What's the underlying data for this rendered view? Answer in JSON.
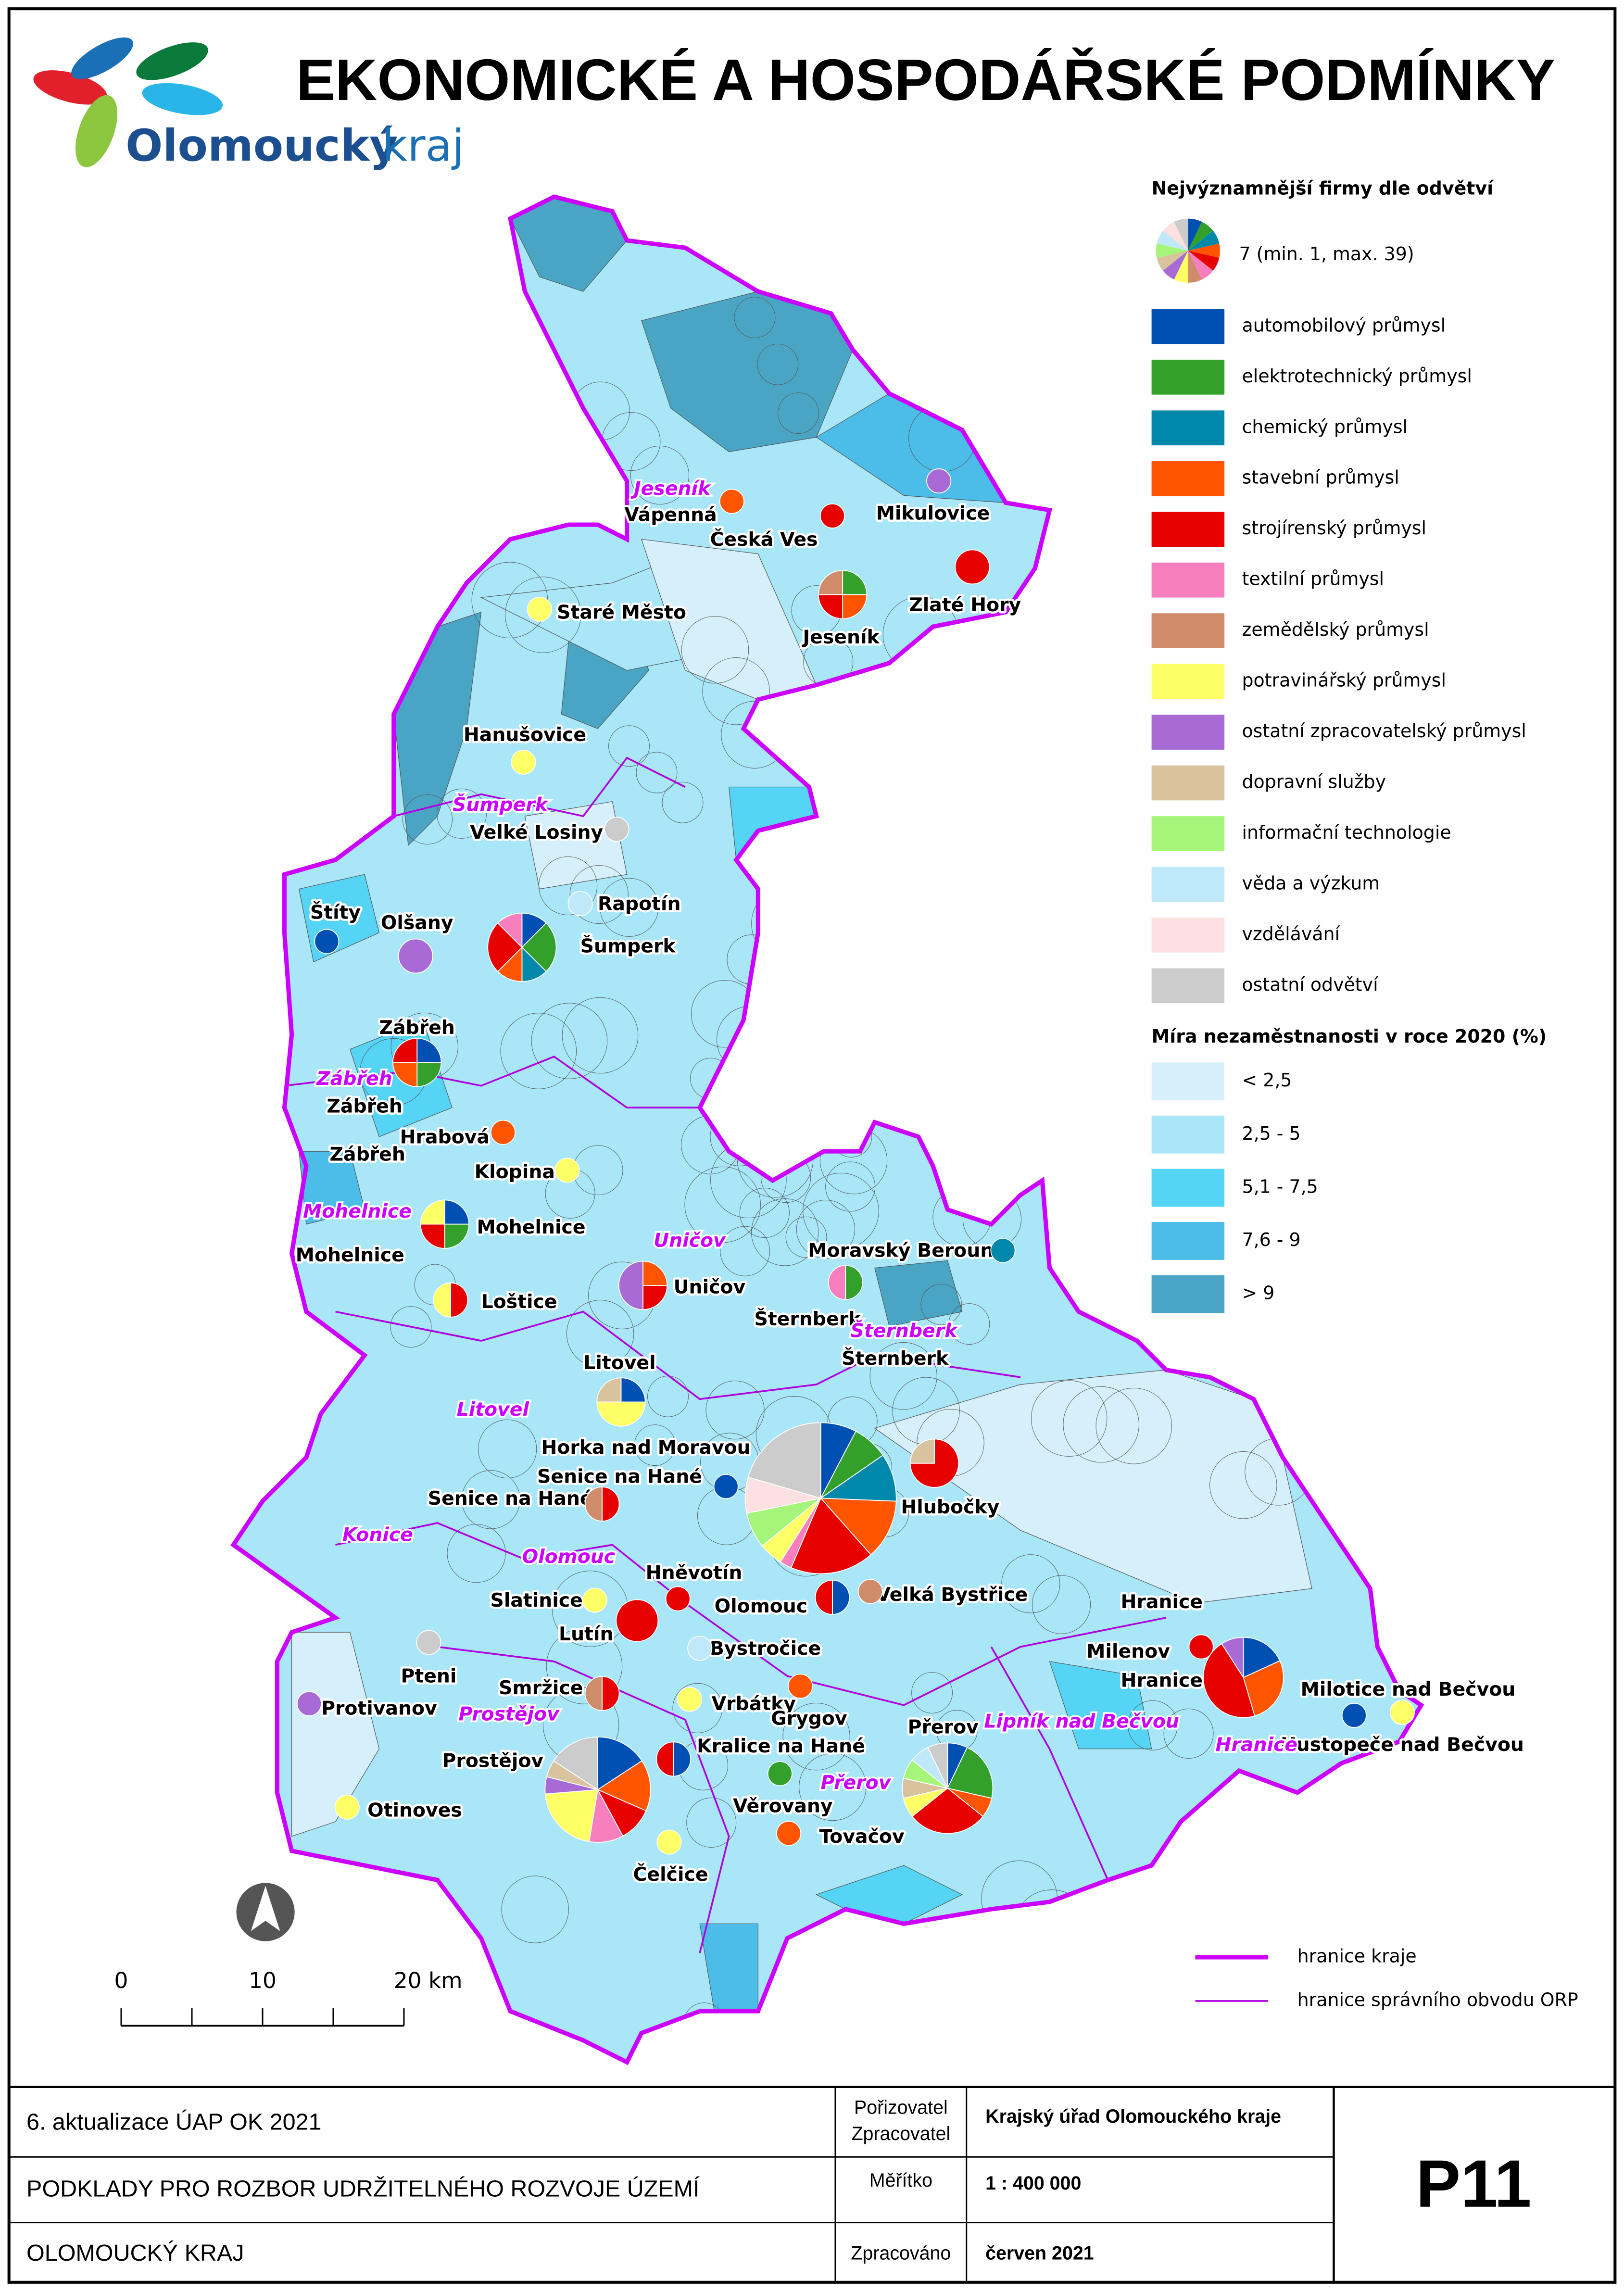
{
  "header": {
    "title": "EKONOMICKÉ A HOSPODÁŘSKÉ PODMÍNKY",
    "logo_name": "Olomoucký",
    "logo_suffix": "kraj"
  },
  "legend": {
    "firms_title": "Nejvýznamnější firmy dle odvětví",
    "firms_sample": "7 (min. 1, max. 39)",
    "sectors": [
      {
        "name": "automobilový průmysl",
        "color": "#0050b4"
      },
      {
        "name": "elektrotechnický průmysl",
        "color": "#33a02c"
      },
      {
        "name": "chemický průmysl",
        "color": "#0088aa"
      },
      {
        "name": "stavební průmysl",
        "color": "#ff5500"
      },
      {
        "name": "strojírenský průmysl",
        "color": "#e60000"
      },
      {
        "name": "textilní průmysl",
        "color": "#f77fbe"
      },
      {
        "name": "zemědělský průmysl",
        "color": "#d08c6a"
      },
      {
        "name": "potravinářský průmysl",
        "color": "#ffff66"
      },
      {
        "name": "ostatní zpracovatelský průmysl",
        "color": "#a86ad4"
      },
      {
        "name": "dopravní služby",
        "color": "#d8c39e"
      },
      {
        "name": "informační technologie",
        "color": "#a4f57a"
      },
      {
        "name": "věda a výzkum",
        "color": "#bfe8fa"
      },
      {
        "name": "vzdělávání",
        "color": "#fde0e0"
      },
      {
        "name": "ostatní odvětví",
        "color": "#cccccc"
      }
    ],
    "unemployment_title": "Míra nezaměstnanosti v roce 2020 (%)",
    "unemployment": [
      {
        "name": "< 2,5",
        "color": "#d6f0fb"
      },
      {
        "name": "2,5 - 5",
        "color": "#a8e6f8"
      },
      {
        "name": "5,1 - 7,5",
        "color": "#55d4f5"
      },
      {
        "name": "7,6 - 9",
        "color": "#4cbce8"
      },
      {
        "name": "> 9",
        "color": "#4aa5c4"
      }
    ],
    "boundaries": [
      "hranice kraje",
      "hranice správního obvodu ORP"
    ]
  },
  "map": {
    "cities": [
      {
        "label": "Vápenná",
        "firms": [
          0,
          0,
          0,
          1,
          0,
          0,
          0,
          0,
          0,
          0,
          0,
          0,
          0,
          0
        ]
      },
      {
        "label": "Česká Ves",
        "firms": [
          0,
          0,
          0,
          0,
          1,
          0,
          0,
          0,
          0,
          0,
          0,
          0,
          0,
          0
        ]
      },
      {
        "label": "Mikulovice",
        "firms": [
          0,
          0,
          0,
          0,
          0,
          0,
          0,
          0,
          1,
          0,
          0,
          0,
          0,
          0
        ]
      },
      {
        "label": "Zlaté Hory",
        "firms": [
          0,
          0,
          0,
          0,
          2,
          0,
          0,
          0,
          0,
          0,
          0,
          0,
          0,
          0
        ]
      },
      {
        "label": "Jeseník",
        "firms": [
          0,
          1,
          0,
          1,
          1,
          0,
          1,
          0,
          0,
          0,
          0,
          0,
          0,
          0
        ]
      },
      {
        "label": "Staré Město",
        "firms": [
          0,
          0,
          0,
          0,
          0,
          0,
          0,
          1,
          0,
          0,
          0,
          0,
          0,
          0
        ]
      },
      {
        "label": "Hanušovice",
        "firms": [
          0,
          0,
          0,
          0,
          0,
          0,
          0,
          1,
          0,
          0,
          0,
          0,
          0,
          0
        ]
      },
      {
        "label": "Velké Losiny",
        "firms": [
          0,
          0,
          0,
          0,
          0,
          0,
          0,
          0,
          0,
          0,
          0,
          0,
          0,
          1
        ]
      },
      {
        "label": "Rapotín",
        "firms": [
          0,
          0,
          0,
          0,
          0,
          0,
          0,
          0,
          0,
          0,
          0,
          1,
          0,
          0
        ]
      },
      {
        "label": "Štíty",
        "firms": [
          1,
          0,
          0,
          0,
          0,
          0,
          0,
          0,
          0,
          0,
          0,
          0,
          0,
          0
        ]
      },
      {
        "label": "Olšany",
        "firms": [
          0,
          0,
          0,
          0,
          0,
          0,
          0,
          0,
          2,
          0,
          0,
          0,
          0,
          0
        ]
      },
      {
        "label": "Šumperk",
        "firms": [
          1,
          2,
          1,
          1,
          2,
          1,
          0,
          0,
          0,
          0,
          0,
          0,
          0,
          0
        ]
      },
      {
        "label": "Zábřeh",
        "firms": [
          1,
          1,
          0,
          1,
          1,
          0,
          0,
          0,
          0,
          0,
          0,
          0,
          0,
          0
        ]
      },
      {
        "label": "Hrabová",
        "firms": [
          0,
          0,
          0,
          1,
          0,
          0,
          0,
          0,
          0,
          0,
          0,
          0,
          0,
          0
        ]
      },
      {
        "label": "Klopina",
        "firms": [
          0,
          0,
          0,
          0,
          0,
          0,
          0,
          1,
          0,
          0,
          0,
          0,
          0,
          0
        ]
      },
      {
        "label": "Mohelnice",
        "firms": [
          1,
          1,
          0,
          0,
          1,
          0,
          0,
          1,
          0,
          0,
          0,
          0,
          0,
          0
        ]
      },
      {
        "label": "Loštice",
        "firms": [
          0,
          0,
          0,
          0,
          1,
          0,
          0,
          1,
          0,
          0,
          0,
          0,
          0,
          0
        ]
      },
      {
        "label": "Uničov",
        "firms": [
          0,
          0,
          0,
          1,
          1,
          0,
          0,
          0,
          2,
          0,
          0,
          0,
          0,
          0
        ]
      },
      {
        "label": "Moravský Beroun",
        "firms": [
          0,
          0,
          1,
          0,
          0,
          0,
          0,
          0,
          0,
          0,
          0,
          0,
          0,
          0
        ]
      },
      {
        "label": "Šternberk",
        "firms": [
          0,
          1,
          0,
          0,
          0,
          1,
          0,
          0,
          0,
          0,
          0,
          0,
          0,
          0
        ]
      },
      {
        "label": "Litovel",
        "firms": [
          1,
          0,
          0,
          0,
          0,
          0,
          0,
          2,
          0,
          1,
          0,
          0,
          0,
          0
        ]
      },
      {
        "label": "Horka nad Moravou",
        "firms": [
          1,
          0,
          0,
          0,
          0,
          0,
          0,
          0,
          0,
          0,
          0,
          0,
          0,
          0
        ]
      },
      {
        "label": "Senice na Hané",
        "firms": [
          0,
          0,
          0,
          0,
          1,
          0,
          1,
          0,
          0,
          0,
          0,
          0,
          0,
          0
        ]
      },
      {
        "label": "Hlubočky",
        "firms": [
          0,
          0,
          0,
          0,
          3,
          0,
          0,
          0,
          0,
          1,
          0,
          0,
          0,
          0
        ]
      },
      {
        "label": "Olomouc",
        "firms": [
          3,
          3,
          4,
          5,
          7,
          1,
          0,
          2,
          0,
          0,
          3,
          0,
          3,
          8
        ]
      },
      {
        "label": "Hněvotín",
        "firms": [
          0,
          0,
          0,
          0,
          1,
          0,
          0,
          0,
          0,
          0,
          0,
          0,
          0,
          0
        ]
      },
      {
        "label": "Slatinice",
        "firms": [
          0,
          0,
          0,
          0,
          0,
          0,
          0,
          1,
          0,
          0,
          0,
          0,
          0,
          0
        ]
      },
      {
        "label": "Lutín",
        "firms": [
          0,
          0,
          0,
          0,
          3,
          0,
          0,
          0,
          0,
          0,
          0,
          0,
          0,
          0
        ]
      },
      {
        "label": "Velká Bystřice",
        "firms": [
          0,
          0,
          0,
          0,
          0,
          0,
          1,
          0,
          0,
          0,
          0,
          0,
          0,
          0
        ]
      },
      {
        "label": null,
        "firms": [
          1,
          0,
          0,
          0,
          1,
          0,
          0,
          0,
          0,
          0,
          0,
          0,
          0,
          0
        ]
      },
      {
        "label": "Bystročice",
        "firms": [
          0,
          0,
          0,
          0,
          0,
          0,
          0,
          0,
          0,
          0,
          0,
          1,
          0,
          0
        ]
      },
      {
        "label": "Pteni",
        "firms": [
          0,
          0,
          0,
          0,
          0,
          0,
          0,
          0,
          0,
          0,
          0,
          0,
          0,
          1
        ]
      },
      {
        "label": "Protivanov",
        "firms": [
          0,
          0,
          0,
          0,
          0,
          0,
          0,
          0,
          1,
          0,
          0,
          0,
          0,
          0
        ]
      },
      {
        "label": "Smržice",
        "firms": [
          0,
          0,
          0,
          0,
          1,
          0,
          1,
          0,
          0,
          0,
          0,
          0,
          0,
          0
        ]
      },
      {
        "label": "Vrbátky",
        "firms": [
          0,
          0,
          0,
          0,
          0,
          0,
          0,
          1,
          0,
          0,
          0,
          0,
          0,
          0
        ]
      },
      {
        "label": "Grygov",
        "firms": [
          0,
          0,
          0,
          1,
          0,
          0,
          0,
          0,
          0,
          0,
          0,
          0,
          0,
          0
        ]
      },
      {
        "label": "Kralice na Hané",
        "firms": [
          1,
          0,
          0,
          0,
          1,
          0,
          0,
          0,
          0,
          0,
          0,
          0,
          0,
          0
        ]
      },
      {
        "label": "Prostějov",
        "firms": [
          3,
          0,
          0,
          3,
          2,
          2,
          0,
          4,
          1,
          1,
          0,
          0,
          0,
          3
        ]
      },
      {
        "label": "Věrovany",
        "firms": [
          0,
          1,
          0,
          0,
          0,
          0,
          0,
          0,
          0,
          0,
          0,
          0,
          0,
          0
        ]
      },
      {
        "label": "Tovačov",
        "firms": [
          0,
          0,
          0,
          1,
          0,
          0,
          0,
          0,
          0,
          0,
          0,
          0,
          0,
          0
        ]
      },
      {
        "label": "Čelčice",
        "firms": [
          0,
          0,
          0,
          0,
          0,
          0,
          0,
          1,
          0,
          0,
          0,
          0,
          0,
          0
        ]
      },
      {
        "label": "Otinoves",
        "firms": [
          0,
          0,
          0,
          0,
          0,
          0,
          0,
          1,
          0,
          0,
          0,
          0,
          0,
          0
        ]
      },
      {
        "label": "Přerov",
        "firms": [
          1,
          3,
          0,
          1,
          4,
          0,
          0,
          1,
          0,
          1,
          1,
          1,
          0,
          1
        ]
      },
      {
        "label": "Milenov",
        "firms": [
          0,
          0,
          0,
          0,
          1,
          0,
          0,
          0,
          0,
          0,
          0,
          0,
          0,
          0
        ]
      },
      {
        "label": "Hranice",
        "firms": [
          2,
          0,
          0,
          3,
          5,
          0,
          0,
          0,
          1,
          0,
          0,
          0,
          0,
          0
        ]
      },
      {
        "label": "Milotice nad Bečvou",
        "firms": [
          0,
          0,
          0,
          0,
          0,
          0,
          0,
          1,
          0,
          0,
          0,
          0,
          0,
          0
        ]
      },
      {
        "label": "Hustopeče nad Bečvou",
        "firms": [
          1,
          0,
          0,
          0,
          0,
          0,
          0,
          0,
          0,
          0,
          0,
          0,
          0,
          0
        ]
      }
    ],
    "extra_labels": [
      "Zábřeh",
      "Zábřeh",
      "Mohelnice",
      "Šternberk",
      "Senice na Hané",
      "Hranice"
    ],
    "orp": [
      "Jeseník",
      "Šumperk",
      "Zábřeh",
      "Mohelnice",
      "Uničov",
      "Šternberk",
      "Litovel",
      "Konice",
      "Olomouc",
      "Prostějov",
      "Přerov",
      "Lipník nad Bečvou",
      "Hranice"
    ],
    "scale": [
      "0",
      "10",
      "20 km"
    ]
  },
  "footer": {
    "update": "6. aktualizace ÚAP OK 2021",
    "subject": "PODKLADY PRO ROZBOR UDRŽITELNÉHO ROZVOJE ÚZEMÍ",
    "region": "OLOMOUCKÝ KRAJ",
    "author_label": [
      "Pořizovatel",
      "Zpracovatel"
    ],
    "author": "Krajský úřad Olomouckého kraje",
    "scale_label": "Měřítko",
    "scale": "1 : 400 000",
    "date_label": "Zpracováno",
    "date": "červen 2021",
    "code": "P11"
  }
}
